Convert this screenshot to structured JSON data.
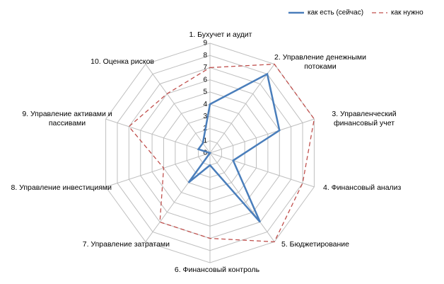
{
  "chart_data": {
    "type": "radar",
    "categories": [
      "1. Бухучет и аудит",
      "2. Управление денежными потоками",
      "3. Управленческий финансовый учет",
      "4. Финансовый анализ",
      "5. Бюджетирование",
      "6. Финансовый контроль",
      "7. Управление затратами",
      "8. Управление инвестициями",
      "9. Управление активами и пассивами",
      "10. Оценка рисков"
    ],
    "series": [
      {
        "name": "как есть (сейчас)",
        "color": "#4a7ebb",
        "values": [
          4,
          8,
          6,
          2,
          7,
          1,
          3,
          0,
          1,
          1
        ]
      },
      {
        "name": "как нужно",
        "color": "#c0504d",
        "values": [
          7,
          9,
          9,
          8,
          9,
          7,
          7,
          4,
          7,
          6
        ]
      }
    ],
    "rlim": [
      0,
      9
    ],
    "rticks": [
      0,
      1,
      2,
      3,
      4,
      5,
      6,
      7,
      8,
      9
    ],
    "grid": true
  }
}
